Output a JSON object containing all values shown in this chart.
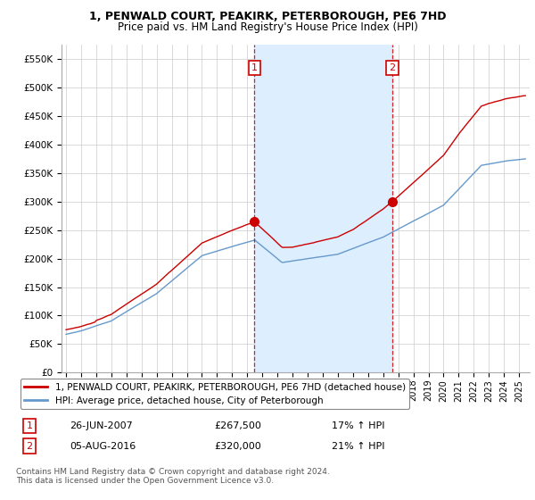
{
  "title": "1, PENWALD COURT, PEAKIRK, PETERBOROUGH, PE6 7HD",
  "subtitle": "Price paid vs. HM Land Registry's House Price Index (HPI)",
  "sale1_date": "26-JUN-2007",
  "sale1_price": 267500,
  "sale1_hpi": "17% ↑ HPI",
  "sale2_date": "05-AUG-2016",
  "sale2_price": 320000,
  "sale2_hpi": "21% ↑ HPI",
  "legend_line1": "1, PENWALD COURT, PEAKIRK, PETERBOROUGH, PE6 7HD (detached house)",
  "legend_line2": "HPI: Average price, detached house, City of Peterborough",
  "footer": "Contains HM Land Registry data © Crown copyright and database right 2024.\nThis data is licensed under the Open Government Licence v3.0.",
  "price_color": "#cc0000",
  "hpi_color": "#6699cc",
  "shade_color": "#ddeeff",
  "background_color": "#ffffff",
  "grid_color": "#cccccc",
  "ylim": [
    0,
    575000
  ],
  "yticks": [
    0,
    50000,
    100000,
    150000,
    200000,
    250000,
    300000,
    350000,
    400000,
    450000,
    500000,
    550000
  ],
  "start_year": 1995,
  "end_year": 2025,
  "marker1_year": 2007.48,
  "marker2_year": 2016.59
}
